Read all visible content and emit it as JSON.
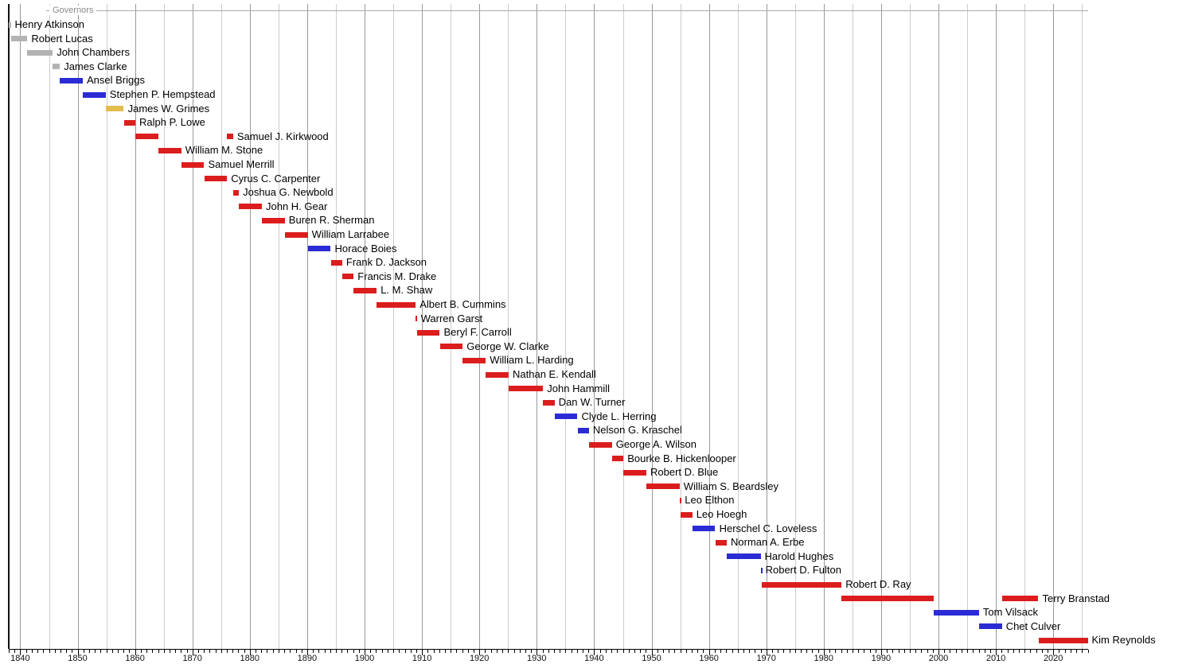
{
  "chart_data": {
    "type": "bar",
    "subtype": "timeline-gantt",
    "title": "Governors",
    "xlabel": "",
    "ylabel": "",
    "legend_position": "none",
    "grid": "on",
    "axis": {
      "min": 1838,
      "max": 2026,
      "minor_tick_interval_years": 1,
      "major_tick_interval_years": 10,
      "gridline_interval_years": 5,
      "decade_labels": [
        "1840",
        "1850",
        "1860",
        "1870",
        "1880",
        "1890",
        "1900",
        "1910",
        "1920",
        "1930",
        "1940",
        "1950",
        "1960",
        "1970",
        "1980",
        "1990",
        "2000",
        "2010",
        "2020"
      ]
    },
    "colors": {
      "republican": "#DC1D1D",
      "democratic": "#2B2BD5",
      "whig": "#E4BC4E",
      "territorial": "#B3B3B3",
      "grid_major": "#999999",
      "grid_minor": "#CCCCCC",
      "frame": "#111111",
      "axis": "#000000",
      "section_line": "#AAAAAA",
      "section_title": "#8A8A8A"
    },
    "rows": [
      {
        "name": "Henry Atkinson",
        "party": "territorial",
        "terms": [
          [
            1838.0,
            1838.35
          ]
        ]
      },
      {
        "name": "Robert Lucas",
        "party": "territorial",
        "terms": [
          [
            1838.35,
            1841.25
          ]
        ]
      },
      {
        "name": "John Chambers",
        "party": "territorial",
        "terms": [
          [
            1841.25,
            1845.65
          ]
        ]
      },
      {
        "name": "James Clarke",
        "party": "territorial",
        "terms": [
          [
            1845.65,
            1846.9
          ]
        ]
      },
      {
        "name": "Ansel Briggs",
        "party": "democratic",
        "terms": [
          [
            1846.9,
            1850.9
          ]
        ]
      },
      {
        "name": "Stephen P. Hempstead",
        "party": "democratic",
        "terms": [
          [
            1850.9,
            1854.9
          ]
        ]
      },
      {
        "name": "James W. Grimes",
        "party": "whig",
        "terms": [
          [
            1854.9,
            1858.05
          ]
        ]
      },
      {
        "name": "Ralph P. Lowe",
        "party": "republican",
        "terms": [
          [
            1858.05,
            1860.05
          ]
        ]
      },
      {
        "name": "Samuel J. Kirkwood",
        "party": "republican",
        "terms": [
          [
            1860.05,
            1864.05
          ],
          [
            1876.05,
            1877.1
          ]
        ]
      },
      {
        "name": "William M. Stone",
        "party": "republican",
        "terms": [
          [
            1864.05,
            1868.05
          ]
        ]
      },
      {
        "name": "Samuel Merrill",
        "party": "republican",
        "terms": [
          [
            1868.05,
            1872.05
          ]
        ]
      },
      {
        "name": "Cyrus C. Carpenter",
        "party": "republican",
        "terms": [
          [
            1872.05,
            1876.05
          ]
        ]
      },
      {
        "name": "Joshua G. Newbold",
        "party": "republican",
        "terms": [
          [
            1877.1,
            1878.1
          ]
        ]
      },
      {
        "name": "John H. Gear",
        "party": "republican",
        "terms": [
          [
            1878.1,
            1882.1
          ]
        ]
      },
      {
        "name": "Buren R. Sherman",
        "party": "republican",
        "terms": [
          [
            1882.1,
            1886.1
          ]
        ]
      },
      {
        "name": "William Larrabee",
        "party": "republican",
        "terms": [
          [
            1886.1,
            1890.1
          ]
        ]
      },
      {
        "name": "Horace Boies",
        "party": "democratic",
        "terms": [
          [
            1890.1,
            1894.1
          ]
        ]
      },
      {
        "name": "Frank D. Jackson",
        "party": "republican",
        "terms": [
          [
            1894.1,
            1896.1
          ]
        ]
      },
      {
        "name": "Francis M. Drake",
        "party": "republican",
        "terms": [
          [
            1896.1,
            1898.1
          ]
        ]
      },
      {
        "name": "L. M. Shaw",
        "party": "republican",
        "terms": [
          [
            1898.1,
            1902.1
          ]
        ]
      },
      {
        "name": "Albert B. Cummins",
        "party": "republican",
        "terms": [
          [
            1902.1,
            1908.9
          ]
        ]
      },
      {
        "name": "Warren Garst",
        "party": "republican",
        "terms": [
          [
            1908.9,
            1909.1
          ]
        ]
      },
      {
        "name": "Beryl F. Carroll",
        "party": "republican",
        "terms": [
          [
            1909.1,
            1913.1
          ]
        ]
      },
      {
        "name": "George W. Clarke",
        "party": "republican",
        "terms": [
          [
            1913.1,
            1917.1
          ]
        ]
      },
      {
        "name": "William L. Harding",
        "party": "republican",
        "terms": [
          [
            1917.1,
            1921.1
          ]
        ]
      },
      {
        "name": "Nathan E. Kendall",
        "party": "republican",
        "terms": [
          [
            1921.1,
            1925.1
          ]
        ]
      },
      {
        "name": "John Hammill",
        "party": "republican",
        "terms": [
          [
            1925.1,
            1931.1
          ]
        ]
      },
      {
        "name": "Dan W. Turner",
        "party": "republican",
        "terms": [
          [
            1931.1,
            1933.1
          ]
        ]
      },
      {
        "name": "Clyde L. Herring",
        "party": "democratic",
        "terms": [
          [
            1933.1,
            1937.1
          ]
        ]
      },
      {
        "name": "Nelson G. Kraschel",
        "party": "democratic",
        "terms": [
          [
            1937.1,
            1939.1
          ]
        ]
      },
      {
        "name": "George A. Wilson",
        "party": "republican",
        "terms": [
          [
            1939.1,
            1943.1
          ]
        ]
      },
      {
        "name": "Bourke B. Hickenlooper",
        "party": "republican",
        "terms": [
          [
            1943.1,
            1945.1
          ]
        ]
      },
      {
        "name": "Robert D. Blue",
        "party": "republican",
        "terms": [
          [
            1945.1,
            1949.1
          ]
        ]
      },
      {
        "name": "William S. Beardsley",
        "party": "republican",
        "terms": [
          [
            1949.1,
            1954.9
          ]
        ]
      },
      {
        "name": "Leo Elthon",
        "party": "republican",
        "terms": [
          [
            1954.9,
            1955.1
          ]
        ]
      },
      {
        "name": "Leo Hoegh",
        "party": "republican",
        "terms": [
          [
            1955.1,
            1957.1
          ]
        ]
      },
      {
        "name": "Herschel C. Loveless",
        "party": "democratic",
        "terms": [
          [
            1957.1,
            1961.1
          ]
        ]
      },
      {
        "name": "Norman A. Erbe",
        "party": "republican",
        "terms": [
          [
            1961.1,
            1963.1
          ]
        ]
      },
      {
        "name": "Harold Hughes",
        "party": "democratic",
        "terms": [
          [
            1963.1,
            1969.0
          ]
        ]
      },
      {
        "name": "Robert D. Fulton",
        "party": "democratic",
        "terms": [
          [
            1969.0,
            1969.15
          ]
        ]
      },
      {
        "name": "Robert D. Ray",
        "party": "republican",
        "terms": [
          [
            1969.15,
            1983.1
          ]
        ]
      },
      {
        "name": "Terry Branstad",
        "party": "republican",
        "terms": [
          [
            1983.1,
            1999.1
          ],
          [
            2011.05,
            2017.4
          ]
        ]
      },
      {
        "name": "Tom Vilsack",
        "party": "democratic",
        "terms": [
          [
            1999.1,
            2007.05
          ]
        ]
      },
      {
        "name": "Chet Culver",
        "party": "democratic",
        "terms": [
          [
            2007.05,
            2011.05
          ]
        ]
      },
      {
        "name": "Kim Reynolds",
        "party": "republican",
        "terms": [
          [
            2017.4,
            2026.0
          ]
        ]
      }
    ]
  }
}
